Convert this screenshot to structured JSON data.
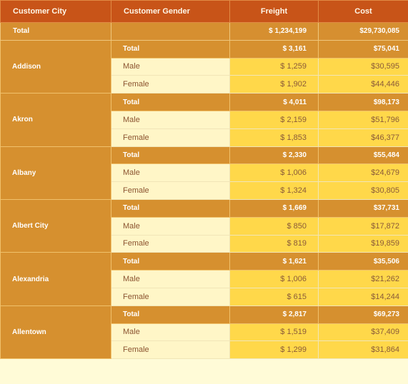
{
  "table": {
    "headers": {
      "city": "Customer City",
      "gender": "Customer Gender",
      "freight": "Freight",
      "cost": "Cost"
    },
    "grand_total": {
      "label": "Total",
      "freight": "$ 1,234,199",
      "cost": "$29,730,085"
    },
    "cities": [
      {
        "name": "Addison",
        "total": {
          "label": "Total",
          "freight": "$ 3,161",
          "cost": "$75,041"
        },
        "rows": [
          {
            "gender": "Male",
            "freight": "$ 1,259",
            "cost": "$30,595"
          },
          {
            "gender": "Female",
            "freight": "$ 1,902",
            "cost": "$44,446"
          }
        ]
      },
      {
        "name": "Akron",
        "total": {
          "label": "Total",
          "freight": "$ 4,011",
          "cost": "$98,173"
        },
        "rows": [
          {
            "gender": "Male",
            "freight": "$ 2,159",
            "cost": "$51,796"
          },
          {
            "gender": "Female",
            "freight": "$ 1,853",
            "cost": "$46,377"
          }
        ]
      },
      {
        "name": "Albany",
        "total": {
          "label": "Total",
          "freight": "$ 2,330",
          "cost": "$55,484"
        },
        "rows": [
          {
            "gender": "Male",
            "freight": "$ 1,006",
            "cost": "$24,679"
          },
          {
            "gender": "Female",
            "freight": "$ 1,324",
            "cost": "$30,805"
          }
        ]
      },
      {
        "name": "Albert City",
        "total": {
          "label": "Total",
          "freight": "$ 1,669",
          "cost": "$37,731"
        },
        "rows": [
          {
            "gender": "Male",
            "freight": "$ 850",
            "cost": "$17,872"
          },
          {
            "gender": "Female",
            "freight": "$ 819",
            "cost": "$19,859"
          }
        ]
      },
      {
        "name": "Alexandria",
        "total": {
          "label": "Total",
          "freight": "$ 1,621",
          "cost": "$35,506"
        },
        "rows": [
          {
            "gender": "Male",
            "freight": "$ 1,006",
            "cost": "$21,262"
          },
          {
            "gender": "Female",
            "freight": "$ 615",
            "cost": "$14,244"
          }
        ]
      },
      {
        "name": "Allentown",
        "total": {
          "label": "Total",
          "freight": "$ 2,817",
          "cost": "$69,273"
        },
        "rows": [
          {
            "gender": "Male",
            "freight": "$ 1,519",
            "cost": "$37,409"
          },
          {
            "gender": "Female",
            "freight": "$ 1,299",
            "cost": "$31,864"
          }
        ]
      }
    ]
  },
  "colors": {
    "header": "#c85418",
    "total_row": "#d68f30",
    "city_cell": "#fff8c8",
    "detail_label": "#fff6c7",
    "detail_value": "#ffd84a",
    "text_brown": "#8b5430"
  }
}
